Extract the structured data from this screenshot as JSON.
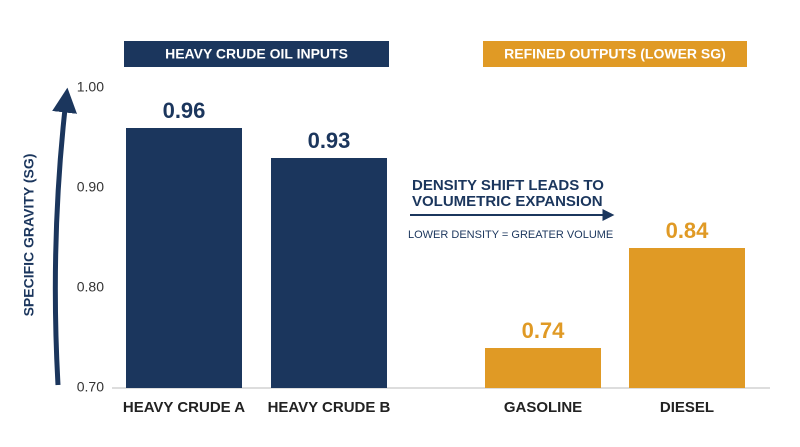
{
  "chart_data": {
    "type": "bar",
    "y_label": "SPECIFIC GRAVITY (SG)",
    "categories": [
      "HEAVY CRUDE A",
      "HEAVY CRUDE B",
      "GASOLINE",
      "DIESEL"
    ],
    "values": [
      0.96,
      0.93,
      0.74,
      0.84
    ],
    "colors": [
      "#1b365d",
      "#1b365d",
      "#e09a25",
      "#e09a25"
    ],
    "groups": [
      {
        "name": "HEAVY CRUDE OIL INPUTS",
        "color": "#1b365d"
      },
      {
        "name": "REFINED OUTPUTS (LOWER SG)",
        "color": "#e09a25"
      }
    ],
    "annotation": [
      "DENSITY SHIFT LEADS TO",
      "VOLUMETRIC EXPANSION"
    ],
    "annotation_note": "LOWER DENSITY = GREATER VOLUME",
    "ylim": [
      0.7,
      1.0
    ],
    "yticks": [
      {
        "value": 0.7,
        "label": "0.70"
      },
      {
        "value": 0.8,
        "label": "0.80"
      },
      {
        "value": 0.9,
        "label": "0.90"
      },
      {
        "value": 1.0,
        "label": "1.00"
      }
    ],
    "grid": false
  }
}
